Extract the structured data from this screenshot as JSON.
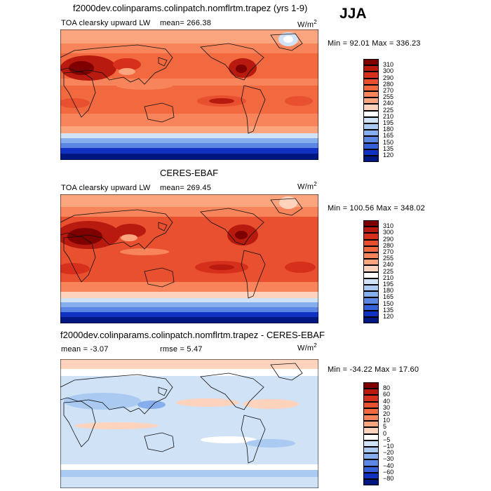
{
  "season": "JJA",
  "panels": [
    {
      "id": "model",
      "title": "f2000dev.colinparams.colinpatch.nomflrtm.trapez (yrs 1-9)",
      "variable": "TOA clearsky upward LW",
      "stat1": "mean=  266.38",
      "stat2": "",
      "units": "W/m",
      "units_exp": "2",
      "minmax": "Min =   92.01 Max =  336.23",
      "kind": "abs",
      "levels": [
        "310",
        "300",
        "290",
        "280",
        "270",
        "255",
        "240",
        "225",
        "210",
        "195",
        "180",
        "165",
        "150",
        "135",
        "120"
      ],
      "colors": [
        "#7f0000",
        "#b81a10",
        "#d6301d",
        "#e8502f",
        "#f2683f",
        "#f7845a",
        "#fba57f",
        "#fdd3bd",
        "#ffffff",
        "#d0e2f6",
        "#aacaf2",
        "#86adec",
        "#5b86e3",
        "#3560d8",
        "#1031c1",
        "#001680"
      ]
    },
    {
      "id": "obs",
      "title": "CERES-EBAF",
      "variable": "TOA clearsky upward LW",
      "stat1": "mean=  269.45",
      "stat2": "",
      "units": "W/m",
      "units_exp": "2",
      "minmax": "Min =  100.56 Max =  348.02",
      "kind": "abs",
      "levels": [
        "310",
        "300",
        "290",
        "280",
        "270",
        "255",
        "240",
        "225",
        "210",
        "195",
        "180",
        "165",
        "150",
        "135",
        "120"
      ],
      "colors": [
        "#7f0000",
        "#b81a10",
        "#d6301d",
        "#e8502f",
        "#f2683f",
        "#f7845a",
        "#fba57f",
        "#fdd3bd",
        "#ffffff",
        "#d0e2f6",
        "#aacaf2",
        "#86adec",
        "#5b86e3",
        "#3560d8",
        "#1031c1",
        "#001680"
      ]
    },
    {
      "id": "diff",
      "title": "f2000dev.colinparams.colinpatch.nomflrtm.trapez - CERES-EBAF",
      "variable": "",
      "stat1": "mean =   -3.07",
      "stat2": "rmse =    5.47",
      "units": "W/m",
      "units_exp": "2",
      "minmax": "Min = -34.22 Max =   17.60",
      "kind": "diff",
      "levels": [
        "80",
        "60",
        "40",
        "30",
        "20",
        "10",
        "5",
        "0",
        "−5",
        "−10",
        "−20",
        "−30",
        "−40",
        "−60",
        "−80"
      ],
      "colors": [
        "#7f0000",
        "#b81a10",
        "#d6301d",
        "#e8502f",
        "#f2683f",
        "#f7845a",
        "#fba57f",
        "#fdd3bd",
        "#ffffff",
        "#d0e2f6",
        "#aacaf2",
        "#86adec",
        "#5b86e3",
        "#3560d8",
        "#1031c1",
        "#001680"
      ]
    }
  ]
}
